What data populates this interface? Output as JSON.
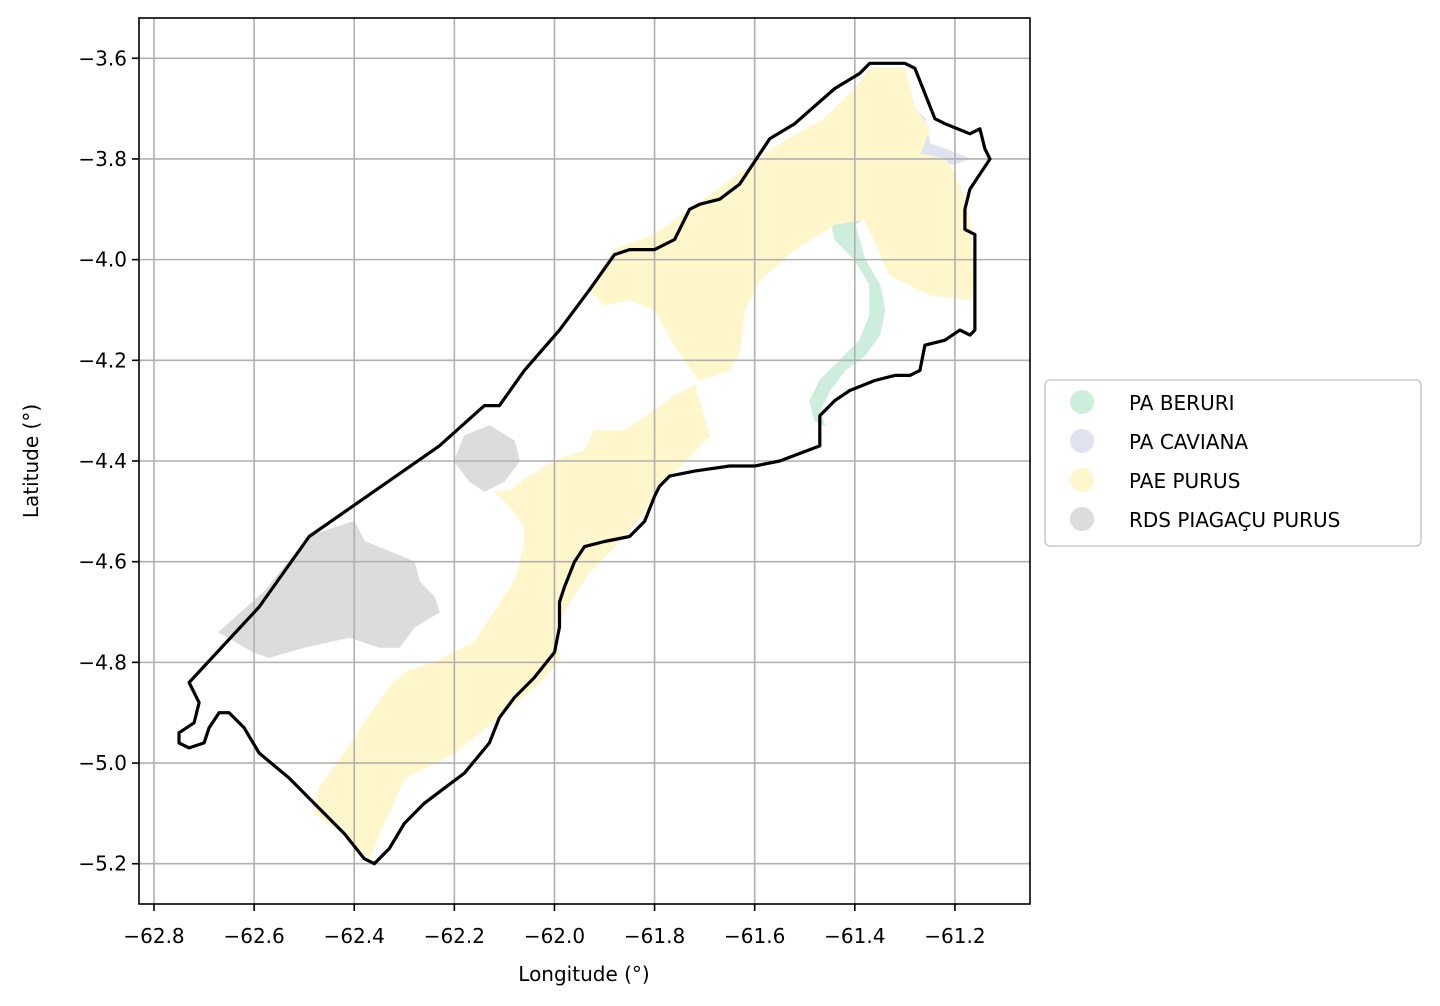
{
  "chart_data": {
    "type": "map",
    "xlabel": "Longitude (°)",
    "ylabel": "Latitude (°)",
    "xlim": [
      -62.83,
      -61.05
    ],
    "ylim": [
      -5.28,
      -3.52
    ],
    "grid": true,
    "legend_position": "right",
    "x_ticks": [
      {
        "value": -62.8,
        "label": "−62.8"
      },
      {
        "value": -62.6,
        "label": "−62.6"
      },
      {
        "value": -62.4,
        "label": "−62.4"
      },
      {
        "value": -62.2,
        "label": "−62.2"
      },
      {
        "value": -62.0,
        "label": "−62.0"
      },
      {
        "value": -61.8,
        "label": "−61.8"
      },
      {
        "value": -61.6,
        "label": "−61.6"
      },
      {
        "value": -61.4,
        "label": "−61.4"
      },
      {
        "value": -61.2,
        "label": "−61.2"
      }
    ],
    "y_ticks": [
      {
        "value": -3.6,
        "label": "−3.6"
      },
      {
        "value": -3.8,
        "label": "−3.8"
      },
      {
        "value": -4.0,
        "label": "−4.0"
      },
      {
        "value": -4.2,
        "label": "−4.2"
      },
      {
        "value": -4.4,
        "label": "−4.4"
      },
      {
        "value": -4.6,
        "label": "−4.6"
      },
      {
        "value": -4.8,
        "label": "−4.8"
      },
      {
        "value": -5.0,
        "label": "−5.0"
      },
      {
        "value": -5.2,
        "label": "−5.2"
      }
    ],
    "boundary_color": "#000000",
    "categories": [
      {
        "name": "PA BERURI",
        "color": "#cdeedd",
        "polygons": [
          [
            [
              -61.45,
              -3.91
            ],
            [
              -61.37,
              -3.91
            ],
            [
              -61.4,
              -3.93
            ],
            [
              -61.38,
              -4.0
            ],
            [
              -61.35,
              -4.05
            ],
            [
              -61.34,
              -4.1
            ],
            [
              -61.35,
              -4.15
            ],
            [
              -61.38,
              -4.19
            ],
            [
              -61.42,
              -4.22
            ],
            [
              -61.45,
              -4.26
            ],
            [
              -61.47,
              -4.3
            ],
            [
              -61.46,
              -4.33
            ],
            [
              -61.48,
              -4.32
            ],
            [
              -61.49,
              -4.28
            ],
            [
              -61.47,
              -4.24
            ],
            [
              -61.43,
              -4.2
            ],
            [
              -61.39,
              -4.16
            ],
            [
              -61.37,
              -4.11
            ],
            [
              -61.37,
              -4.05
            ],
            [
              -61.4,
              -4.0
            ],
            [
              -61.44,
              -3.96
            ]
          ]
        ]
      },
      {
        "name": "PA CAVIANA",
        "color": "#dfe3f0",
        "polygons": [
          [
            [
              -61.28,
              -3.7
            ],
            [
              -61.26,
              -3.72
            ],
            [
              -61.25,
              -3.77
            ],
            [
              -61.22,
              -3.78
            ],
            [
              -61.17,
              -3.8
            ],
            [
              -61.2,
              -3.81
            ],
            [
              -61.24,
              -3.81
            ],
            [
              -61.26,
              -3.8
            ],
            [
              -61.28,
              -3.8
            ],
            [
              -61.3,
              -3.78
            ],
            [
              -61.28,
              -3.76
            ]
          ]
        ]
      },
      {
        "name": "PAE PURUS",
        "color": "#fff6cc",
        "polygons": [
          [
            [
              -61.93,
              -4.06
            ],
            [
              -61.88,
              -3.98
            ],
            [
              -61.8,
              -3.95
            ],
            [
              -61.7,
              -3.88
            ],
            [
              -61.55,
              -3.77
            ],
            [
              -61.46,
              -3.72
            ],
            [
              -61.39,
              -3.65
            ],
            [
              -61.37,
              -3.62
            ],
            [
              -61.3,
              -3.62
            ],
            [
              -61.28,
              -3.7
            ],
            [
              -61.25,
              -3.74
            ],
            [
              -61.27,
              -3.79
            ],
            [
              -61.22,
              -3.8
            ],
            [
              -61.2,
              -3.83
            ],
            [
              -61.18,
              -3.88
            ],
            [
              -61.17,
              -3.93
            ],
            [
              -61.16,
              -4.05
            ],
            [
              -61.17,
              -4.08
            ],
            [
              -61.25,
              -4.07
            ],
            [
              -61.33,
              -4.03
            ],
            [
              -61.38,
              -3.92
            ],
            [
              -61.44,
              -3.93
            ],
            [
              -61.52,
              -3.98
            ],
            [
              -61.59,
              -4.04
            ],
            [
              -61.62,
              -4.1
            ],
            [
              -61.63,
              -4.18
            ],
            [
              -61.65,
              -4.22
            ],
            [
              -61.71,
              -4.24
            ],
            [
              -61.76,
              -4.17
            ],
            [
              -61.8,
              -4.1
            ],
            [
              -61.85,
              -4.08
            ],
            [
              -61.9,
              -4.09
            ]
          ],
          [
            [
              -61.72,
              -4.25
            ],
            [
              -61.76,
              -4.27
            ],
            [
              -61.8,
              -4.3
            ],
            [
              -61.86,
              -4.34
            ],
            [
              -61.92,
              -4.34
            ],
            [
              -61.94,
              -4.38
            ],
            [
              -62.0,
              -4.4
            ],
            [
              -62.05,
              -4.43
            ],
            [
              -62.09,
              -4.46
            ],
            [
              -62.12,
              -4.46
            ],
            [
              -62.08,
              -4.5
            ],
            [
              -62.06,
              -4.53
            ],
            [
              -62.06,
              -4.57
            ],
            [
              -62.08,
              -4.64
            ],
            [
              -62.12,
              -4.7
            ],
            [
              -62.16,
              -4.76
            ],
            [
              -62.24,
              -4.8
            ],
            [
              -62.3,
              -4.82
            ],
            [
              -62.33,
              -4.85
            ],
            [
              -62.38,
              -4.92
            ],
            [
              -62.42,
              -4.98
            ],
            [
              -62.47,
              -5.05
            ],
            [
              -62.48,
              -5.1
            ],
            [
              -62.42,
              -5.14
            ],
            [
              -62.37,
              -5.19
            ],
            [
              -62.35,
              -5.14
            ],
            [
              -62.3,
              -5.03
            ],
            [
              -62.2,
              -4.98
            ],
            [
              -62.1,
              -4.9
            ],
            [
              -62.02,
              -4.83
            ],
            [
              -61.99,
              -4.79
            ],
            [
              -62.0,
              -4.74
            ],
            [
              -61.97,
              -4.68
            ],
            [
              -61.93,
              -4.62
            ],
            [
              -61.87,
              -4.56
            ],
            [
              -61.82,
              -4.5
            ],
            [
              -61.78,
              -4.44
            ],
            [
              -61.73,
              -4.39
            ],
            [
              -61.69,
              -4.35
            ]
          ]
        ]
      },
      {
        "name": "RDS PIAGAÇU PURUS",
        "color": "#dcdcdc",
        "polygons": [
          [
            [
              -62.49,
              -4.55
            ],
            [
              -62.4,
              -4.52
            ],
            [
              -62.38,
              -4.56
            ],
            [
              -62.33,
              -4.58
            ],
            [
              -62.28,
              -4.6
            ],
            [
              -62.27,
              -4.64
            ],
            [
              -62.24,
              -4.67
            ],
            [
              -62.23,
              -4.7
            ],
            [
              -62.28,
              -4.73
            ],
            [
              -62.31,
              -4.77
            ],
            [
              -62.35,
              -4.77
            ],
            [
              -62.41,
              -4.75
            ],
            [
              -62.5,
              -4.77
            ],
            [
              -62.57,
              -4.79
            ],
            [
              -62.6,
              -4.78
            ],
            [
              -62.67,
              -4.74
            ],
            [
              -62.58,
              -4.66
            ]
          ],
          [
            [
              -62.18,
              -4.35
            ],
            [
              -62.13,
              -4.33
            ],
            [
              -62.08,
              -4.36
            ],
            [
              -62.07,
              -4.4
            ],
            [
              -62.1,
              -4.44
            ],
            [
              -62.14,
              -4.46
            ],
            [
              -62.17,
              -4.44
            ],
            [
              -62.2,
              -4.4
            ]
          ]
        ]
      }
    ],
    "boundary": [
      [
        -62.73,
        -4.84
      ],
      [
        -62.59,
        -4.69
      ],
      [
        -62.49,
        -4.55
      ],
      [
        -62.36,
        -4.46
      ],
      [
        -62.23,
        -4.37
      ],
      [
        -62.14,
        -4.29
      ],
      [
        -62.11,
        -4.29
      ],
      [
        -62.06,
        -4.22
      ],
      [
        -61.99,
        -4.14
      ],
      [
        -61.93,
        -4.06
      ],
      [
        -61.88,
        -3.99
      ],
      [
        -61.85,
        -3.98
      ],
      [
        -61.8,
        -3.98
      ],
      [
        -61.76,
        -3.96
      ],
      [
        -61.73,
        -3.9
      ],
      [
        -61.71,
        -3.89
      ],
      [
        -61.67,
        -3.88
      ],
      [
        -61.63,
        -3.85
      ],
      [
        -61.59,
        -3.79
      ],
      [
        -61.57,
        -3.76
      ],
      [
        -61.52,
        -3.73
      ],
      [
        -61.44,
        -3.66
      ],
      [
        -61.39,
        -3.63
      ],
      [
        -61.37,
        -3.61
      ],
      [
        -61.3,
        -3.61
      ],
      [
        -61.28,
        -3.62
      ],
      [
        -61.26,
        -3.67
      ],
      [
        -61.24,
        -3.72
      ],
      [
        -61.22,
        -3.73
      ],
      [
        -61.17,
        -3.75
      ],
      [
        -61.15,
        -3.74
      ],
      [
        -61.14,
        -3.78
      ],
      [
        -61.13,
        -3.8
      ],
      [
        -61.15,
        -3.83
      ],
      [
        -61.17,
        -3.86
      ],
      [
        -61.18,
        -3.9
      ],
      [
        -61.18,
        -3.94
      ],
      [
        -61.16,
        -3.95
      ],
      [
        -61.16,
        -4.14
      ],
      [
        -61.17,
        -4.15
      ],
      [
        -61.19,
        -4.14
      ],
      [
        -61.22,
        -4.16
      ],
      [
        -61.26,
        -4.17
      ],
      [
        -61.27,
        -4.22
      ],
      [
        -61.29,
        -4.23
      ],
      [
        -61.32,
        -4.23
      ],
      [
        -61.36,
        -4.24
      ],
      [
        -61.41,
        -4.26
      ],
      [
        -61.44,
        -4.28
      ],
      [
        -61.47,
        -4.31
      ],
      [
        -61.47,
        -4.37
      ],
      [
        -61.55,
        -4.4
      ],
      [
        -61.6,
        -4.41
      ],
      [
        -61.65,
        -4.41
      ],
      [
        -61.72,
        -4.42
      ],
      [
        -61.77,
        -4.43
      ],
      [
        -61.79,
        -4.45
      ],
      [
        -61.8,
        -4.47
      ],
      [
        -61.82,
        -4.52
      ],
      [
        -61.85,
        -4.55
      ],
      [
        -61.9,
        -4.56
      ],
      [
        -61.94,
        -4.57
      ],
      [
        -61.96,
        -4.6
      ],
      [
        -61.98,
        -4.65
      ],
      [
        -61.99,
        -4.68
      ],
      [
        -61.99,
        -4.73
      ],
      [
        -62.0,
        -4.78
      ],
      [
        -62.04,
        -4.83
      ],
      [
        -62.08,
        -4.87
      ],
      [
        -62.11,
        -4.91
      ],
      [
        -62.13,
        -4.96
      ],
      [
        -62.18,
        -5.02
      ],
      [
        -62.22,
        -5.05
      ],
      [
        -62.26,
        -5.08
      ],
      [
        -62.3,
        -5.12
      ],
      [
        -62.33,
        -5.17
      ],
      [
        -62.36,
        -5.2
      ],
      [
        -62.38,
        -5.19
      ],
      [
        -62.42,
        -5.14
      ],
      [
        -62.47,
        -5.09
      ],
      [
        -62.53,
        -5.03
      ],
      [
        -62.59,
        -4.98
      ],
      [
        -62.62,
        -4.93
      ],
      [
        -62.65,
        -4.9
      ],
      [
        -62.67,
        -4.9
      ],
      [
        -62.69,
        -4.93
      ],
      [
        -62.7,
        -4.96
      ],
      [
        -62.73,
        -4.97
      ],
      [
        -62.75,
        -4.96
      ],
      [
        -62.75,
        -4.94
      ],
      [
        -62.72,
        -4.92
      ],
      [
        -62.71,
        -4.88
      ]
    ]
  },
  "legend": {
    "items": [
      {
        "label": "PA BERURI",
        "color": "#cdeedd"
      },
      {
        "label": "PA CAVIANA",
        "color": "#dfe3f0"
      },
      {
        "label": "PAE PURUS",
        "color": "#fff6cc"
      },
      {
        "label": "RDS PIAGAÇU PURUS",
        "color": "#dcdcdc"
      }
    ]
  }
}
